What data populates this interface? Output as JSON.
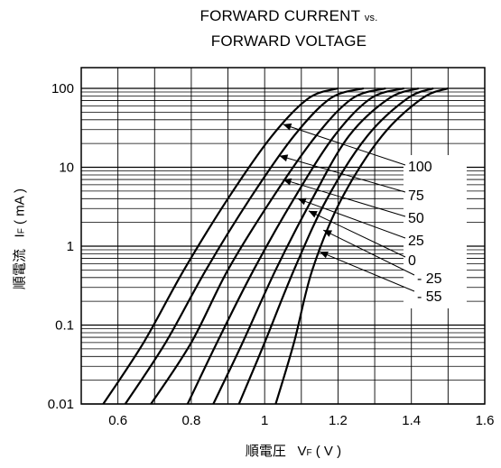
{
  "title": {
    "line1_main": "FORWARD CURRENT",
    "line1_suffix": "vs.",
    "line2": "FORWARD VOLTAGE"
  },
  "ylabel": {
    "jp": "順電流",
    "symbol": "I",
    "subscript": "F",
    "unit": "( mA )"
  },
  "xlabel": {
    "jp": "順電圧",
    "symbol": "V",
    "subscript": "F",
    "unit": "( V )"
  },
  "chart_data": {
    "type": "line",
    "xlim": [
      0.5,
      1.6
    ],
    "ylim": [
      0.01,
      100
    ],
    "yscale": "log",
    "grid": true,
    "x_ticks": [
      "0.6",
      "0.8",
      "1",
      "1.2",
      "1.4",
      "1.6"
    ],
    "y_ticks": [
      "0.01",
      "0.1",
      "1",
      "10",
      "100"
    ],
    "series": [
      {
        "name": "100",
        "points": [
          [
            0.56,
            0.01
          ],
          [
            0.67,
            0.06
          ],
          [
            0.78,
            0.5
          ],
          [
            0.9,
            4
          ],
          [
            1.02,
            25
          ],
          [
            1.12,
            75
          ],
          [
            1.2,
            100
          ]
        ]
      },
      {
        "name": "75",
        "points": [
          [
            0.62,
            0.01
          ],
          [
            0.73,
            0.06
          ],
          [
            0.84,
            0.5
          ],
          [
            0.96,
            4
          ],
          [
            1.08,
            25
          ],
          [
            1.18,
            75
          ],
          [
            1.27,
            100
          ]
        ]
      },
      {
        "name": "50",
        "points": [
          [
            0.69,
            0.01
          ],
          [
            0.8,
            0.06
          ],
          [
            0.9,
            0.5
          ],
          [
            1.02,
            4
          ],
          [
            1.14,
            25
          ],
          [
            1.24,
            75
          ],
          [
            1.33,
            100
          ]
        ]
      },
      {
        "name": "25",
        "points": [
          [
            0.79,
            0.01
          ],
          [
            0.87,
            0.06
          ],
          [
            0.97,
            0.5
          ],
          [
            1.08,
            4
          ],
          [
            1.19,
            25
          ],
          [
            1.29,
            75
          ],
          [
            1.38,
            100
          ]
        ]
      },
      {
        "name": "0",
        "points": [
          [
            0.86,
            0.01
          ],
          [
            0.94,
            0.06
          ],
          [
            1.03,
            0.5
          ],
          [
            1.13,
            4
          ],
          [
            1.23,
            25
          ],
          [
            1.34,
            75
          ],
          [
            1.42,
            100
          ]
        ]
      },
      {
        "name": "- 25",
        "points": [
          [
            0.93,
            0.01
          ],
          [
            1.0,
            0.06
          ],
          [
            1.08,
            0.5
          ],
          [
            1.17,
            4
          ],
          [
            1.28,
            25
          ],
          [
            1.39,
            75
          ],
          [
            1.46,
            100
          ]
        ]
      },
      {
        "name": "- 55",
        "points": [
          [
            1.03,
            0.01
          ],
          [
            1.08,
            0.06
          ],
          [
            1.13,
            0.5
          ],
          [
            1.21,
            4
          ],
          [
            1.32,
            25
          ],
          [
            1.43,
            75
          ],
          [
            1.5,
            100
          ]
        ]
      }
    ],
    "annotations": [
      "100",
      "75",
      "50",
      "25",
      "0",
      "- 25",
      "- 55"
    ]
  }
}
